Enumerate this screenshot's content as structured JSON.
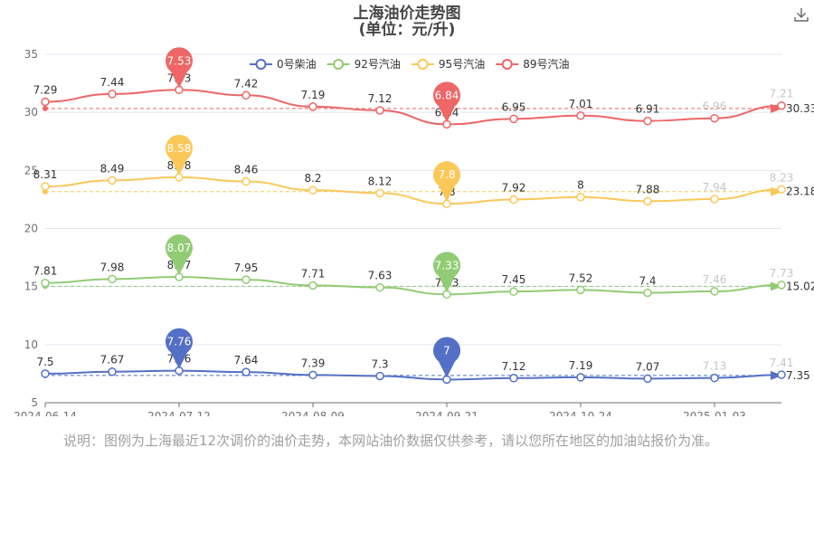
{
  "chart_data": {
    "type": "line",
    "title": "上海油价走势图",
    "subtitle": "(单位：元/升)",
    "x_ticks": [
      "2024-06-14",
      "2024-07-12",
      "2024-08-09",
      "2024-09-21",
      "2024-10-24",
      "2025-01-03"
    ],
    "y_ticks": [
      "5",
      "10",
      "15",
      "20",
      "25",
      "30",
      "35"
    ],
    "ylim": [
      5,
      35
    ],
    "legend_position": "top",
    "series": [
      {
        "name": "0号柴油",
        "color": "#5470c6",
        "labels": [
          "7.5",
          "7.67",
          "7.76",
          "7.64",
          "7.39",
          "7.3",
          "7",
          "7.12",
          "7.19",
          "7.07",
          "7.13",
          "7.41"
        ],
        "values": [
          7.5,
          7.67,
          7.76,
          7.64,
          7.39,
          7.3,
          7.0,
          7.12,
          7.19,
          7.07,
          7.13,
          7.41
        ],
        "max_label": "7.76",
        "min_label": "7",
        "avg_label": "7.35"
      },
      {
        "name": "92号汽油",
        "color": "#91cc75",
        "labels": [
          "7.81",
          "7.98",
          "8.07",
          "7.95",
          "7.71",
          "7.63",
          "7.33",
          "7.45",
          "7.52",
          "7.4",
          "7.46",
          "7.73"
        ],
        "values": [
          7.81,
          7.98,
          8.07,
          7.95,
          7.71,
          7.63,
          7.33,
          7.45,
          7.52,
          7.4,
          7.46,
          7.73
        ],
        "max_label": "8.07",
        "min_label": "7.33",
        "avg_label": "15.02"
      },
      {
        "name": "95号汽油",
        "color": "#fac858",
        "labels": [
          "8.31",
          "8.49",
          "8.58",
          "8.46",
          "8.2",
          "8.12",
          "7.8",
          "7.92",
          "8",
          "7.88",
          "7.94",
          "8.23"
        ],
        "values": [
          8.31,
          8.49,
          8.58,
          8.46,
          8.2,
          8.12,
          7.8,
          7.92,
          8.0,
          7.88,
          7.94,
          8.23
        ],
        "max_label": "8.58",
        "min_label": "7.8",
        "avg_label": "23.18"
      },
      {
        "name": "89号汽油",
        "color": "#ee6666",
        "labels": [
          "7.29",
          "7.44",
          "7.53",
          "7.42",
          "7.19",
          "7.12",
          "6.84",
          "6.95",
          "7.01",
          "6.91",
          "6.96",
          "7.21"
        ],
        "values": [
          7.29,
          7.44,
          7.53,
          7.42,
          7.19,
          7.12,
          6.84,
          6.95,
          7.01,
          6.91,
          6.96,
          7.21
        ],
        "max_label": "7.53",
        "min_label": "6.84",
        "avg_label": "30.33"
      }
    ]
  },
  "note": "说明：图例为上海最近12次调价的油价走势，本网站油价数据仅供参考，请以您所在地区的加油站报价为准。",
  "download_icon": "download-icon"
}
